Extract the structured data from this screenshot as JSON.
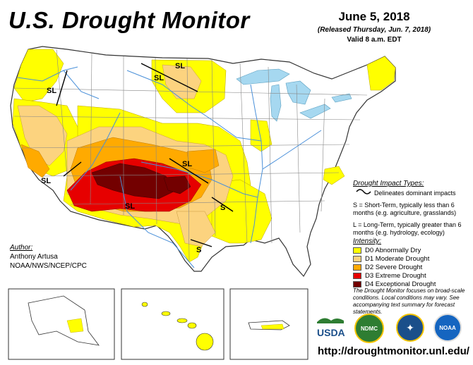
{
  "title": "U.S. Drought Monitor",
  "date": "June 5, 2018",
  "released": "(Released Thursday, Jun. 7, 2018)",
  "valid": "Valid 8 a.m. EDT",
  "author": {
    "header": "Author:",
    "name": "Anthony Artusa",
    "org": "NOAA/NWS/NCEP/CPC"
  },
  "impact_types": {
    "header": "Drought Impact Types:",
    "delineates": "Delineates dominant impacts",
    "short_term": "S = Short-Term, typically less than 6 months (e.g. agriculture, grasslands)",
    "long_term": "L = Long-Term, typically greater than 6 months (e.g. hydrology, ecology)"
  },
  "intensity": {
    "header": "Intensity:",
    "levels": [
      {
        "label": "D0 Abnormally Dry",
        "color": "#ffff00"
      },
      {
        "label": "D1 Moderate Drought",
        "color": "#fcd37f"
      },
      {
        "label": "D2 Severe Drought",
        "color": "#ffaa00"
      },
      {
        "label": "D3 Extreme Drought",
        "color": "#e60000"
      },
      {
        "label": "D4 Exceptional Drought",
        "color": "#730000"
      }
    ]
  },
  "note": "The Drought Monitor focuses on broad-scale conditions. Local conditions may vary. See accompanying text summary for forecast statements.",
  "map_labels": [
    "SL",
    "SL",
    "SL",
    "SL",
    "SL",
    "SL",
    "S",
    "S"
  ],
  "logos": {
    "usda": "USDA",
    "ndmc": "NDMC",
    "noaa": "NOAA"
  },
  "url": "http://droughtmonitor.unl.edu/",
  "colors": {
    "water": "#a6d8f0",
    "state_border": "#888888",
    "river": "#4a90d9"
  }
}
